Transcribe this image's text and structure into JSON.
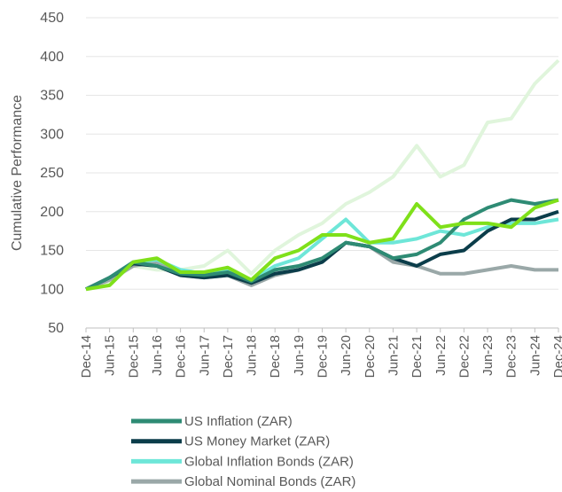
{
  "chart_data": {
    "type": "line",
    "y_label": "Cumulative Performance",
    "categories": [
      "Dec-14",
      "Jun-15",
      "Dec-15",
      "Jun-16",
      "Dec-16",
      "Jun-17",
      "Dec-17",
      "Jun-18",
      "Dec-18",
      "Jun-19",
      "Dec-19",
      "Jun-20",
      "Dec-20",
      "Jun-21",
      "Dec-21",
      "Jun-22",
      "Dec-22",
      "Jun-23",
      "Dec-23",
      "Jun-24",
      "Dec-24"
    ],
    "ylim": [
      50,
      450
    ],
    "yticks": [
      50,
      100,
      150,
      200,
      250,
      300,
      350,
      400,
      450
    ],
    "grid": true,
    "series": [
      {
        "color": "#e0f5dc",
        "values": [
          100,
          110,
          130,
          125,
          125,
          130,
          150,
          120,
          150,
          170,
          185,
          210,
          225,
          245,
          285,
          245,
          260,
          315,
          320,
          365,
          395
        ]
      },
      {
        "name": "Global Nominal Bonds (ZAR)",
        "color": "#9aa8a8",
        "values": [
          100,
          112,
          130,
          135,
          118,
          115,
          118,
          105,
          118,
          125,
          135,
          160,
          155,
          135,
          130,
          120,
          120,
          125,
          130,
          125,
          125
        ]
      },
      {
        "name": "Global Inflation Bonds (ZAR)",
        "color": "#6ee6d8",
        "values": [
          100,
          115,
          135,
          138,
          125,
          120,
          125,
          112,
          130,
          140,
          165,
          190,
          160,
          160,
          165,
          175,
          170,
          180,
          185,
          185,
          190
        ]
      },
      {
        "name": "US Money Market (ZAR)",
        "color": "#0b3d4a",
        "values": [
          100,
          115,
          133,
          130,
          118,
          115,
          118,
          108,
          120,
          125,
          135,
          160,
          155,
          140,
          130,
          145,
          150,
          175,
          190,
          190,
          200
        ]
      },
      {
        "name": "US Inflation (ZAR)",
        "color": "#2e8b74",
        "values": [
          100,
          115,
          135,
          130,
          120,
          118,
          122,
          110,
          125,
          130,
          140,
          160,
          155,
          140,
          145,
          160,
          190,
          205,
          215,
          210,
          215
        ]
      },
      {
        "color": "#7fe01a",
        "values": [
          100,
          105,
          135,
          140,
          122,
          122,
          128,
          112,
          140,
          150,
          170,
          170,
          160,
          165,
          210,
          180,
          185,
          185,
          180,
          205,
          215
        ]
      }
    ],
    "legend_order": [
      4,
      3,
      2,
      1
    ]
  }
}
